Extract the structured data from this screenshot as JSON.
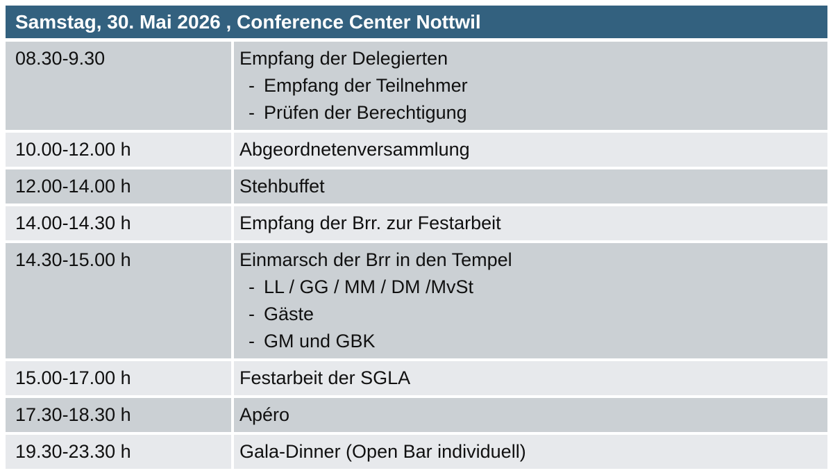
{
  "colors": {
    "header_bg": "#33617F",
    "header_text": "#FFFFFF",
    "row_dark": "#CBD0D4",
    "row_light": "#E7E9EC",
    "body_text": "#101010"
  },
  "table": {
    "title": "Samstag, 30. Mai 2026 , Conference Center Nottwil",
    "bullet_marker": "-",
    "rows": [
      {
        "time": "08.30-9.30",
        "title": "Empfang der Delegierten",
        "bullets": [
          "Empfang der Teilnehmer",
          "Prüfen der Berechtigung"
        ]
      },
      {
        "time": "10.00-12.00 h",
        "title": "Abgeordnetenversammlung",
        "bullets": []
      },
      {
        "time": "12.00-14.00 h",
        "title": "Stehbuffet",
        "bullets": []
      },
      {
        "time": "14.00-14.30 h",
        "title": "Empfang der Brr. zur Festarbeit",
        "bullets": []
      },
      {
        "time": "14.30-15.00 h",
        "title": "Einmarsch der Brr in den Tempel",
        "bullets": [
          "LL / GG / MM / DM /MvSt",
          "Gäste",
          "GM und GBK"
        ]
      },
      {
        "time": "15.00-17.00 h",
        "title": "Festarbeit der SGLA",
        "bullets": []
      },
      {
        "time": "17.30-18.30 h",
        "title": "Apéro",
        "bullets": []
      },
      {
        "time": "19.30-23.30 h",
        "title": "Gala-Dinner (Open Bar individuell)",
        "bullets": []
      }
    ]
  }
}
